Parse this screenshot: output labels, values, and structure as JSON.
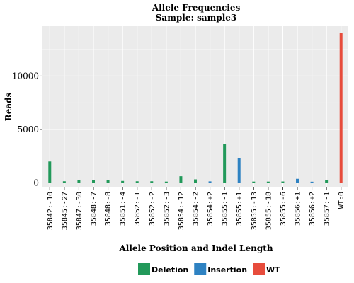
{
  "chart_data": {
    "type": "bar",
    "title": "Allele Frequencies",
    "subtitle": "Sample: sample3",
    "xlabel": "Allele Position and Indel Length",
    "ylabel": "Reads",
    "ylim": [
      0,
      14500
    ],
    "yticks": [
      0,
      5000,
      10000
    ],
    "ytick_labels": [
      "0",
      "5000",
      "10000"
    ],
    "grid": true,
    "legend_position": "bottom",
    "categories": [
      "35842:-10",
      "35845:-27",
      "35847:-30",
      "35848:-7",
      "35848:-8",
      "35851:-4",
      "35852:-1",
      "35852:-2",
      "35852:-3",
      "35854:-12",
      "35854:-2",
      "35854:+2",
      "35855:-1",
      "35855:+1",
      "35855:-13",
      "35855:-18",
      "35855:-6",
      "35856:+1",
      "35856:+2",
      "35857:-1",
      "WT:0"
    ],
    "series_index": [
      0,
      0,
      0,
      0,
      0,
      0,
      0,
      0,
      0,
      0,
      0,
      1,
      0,
      1,
      0,
      0,
      0,
      1,
      1,
      0,
      2
    ],
    "values": [
      2000,
      150,
      270,
      260,
      260,
      180,
      150,
      150,
      120,
      620,
      330,
      140,
      3650,
      2350,
      120,
      120,
      130,
      380,
      110,
      280,
      14000
    ],
    "series": [
      {
        "name": "Deletion",
        "color": "#22995a"
      },
      {
        "name": "Insertion",
        "color": "#2e82c2"
      },
      {
        "name": "WT",
        "color": "#e74c3c"
      }
    ]
  }
}
